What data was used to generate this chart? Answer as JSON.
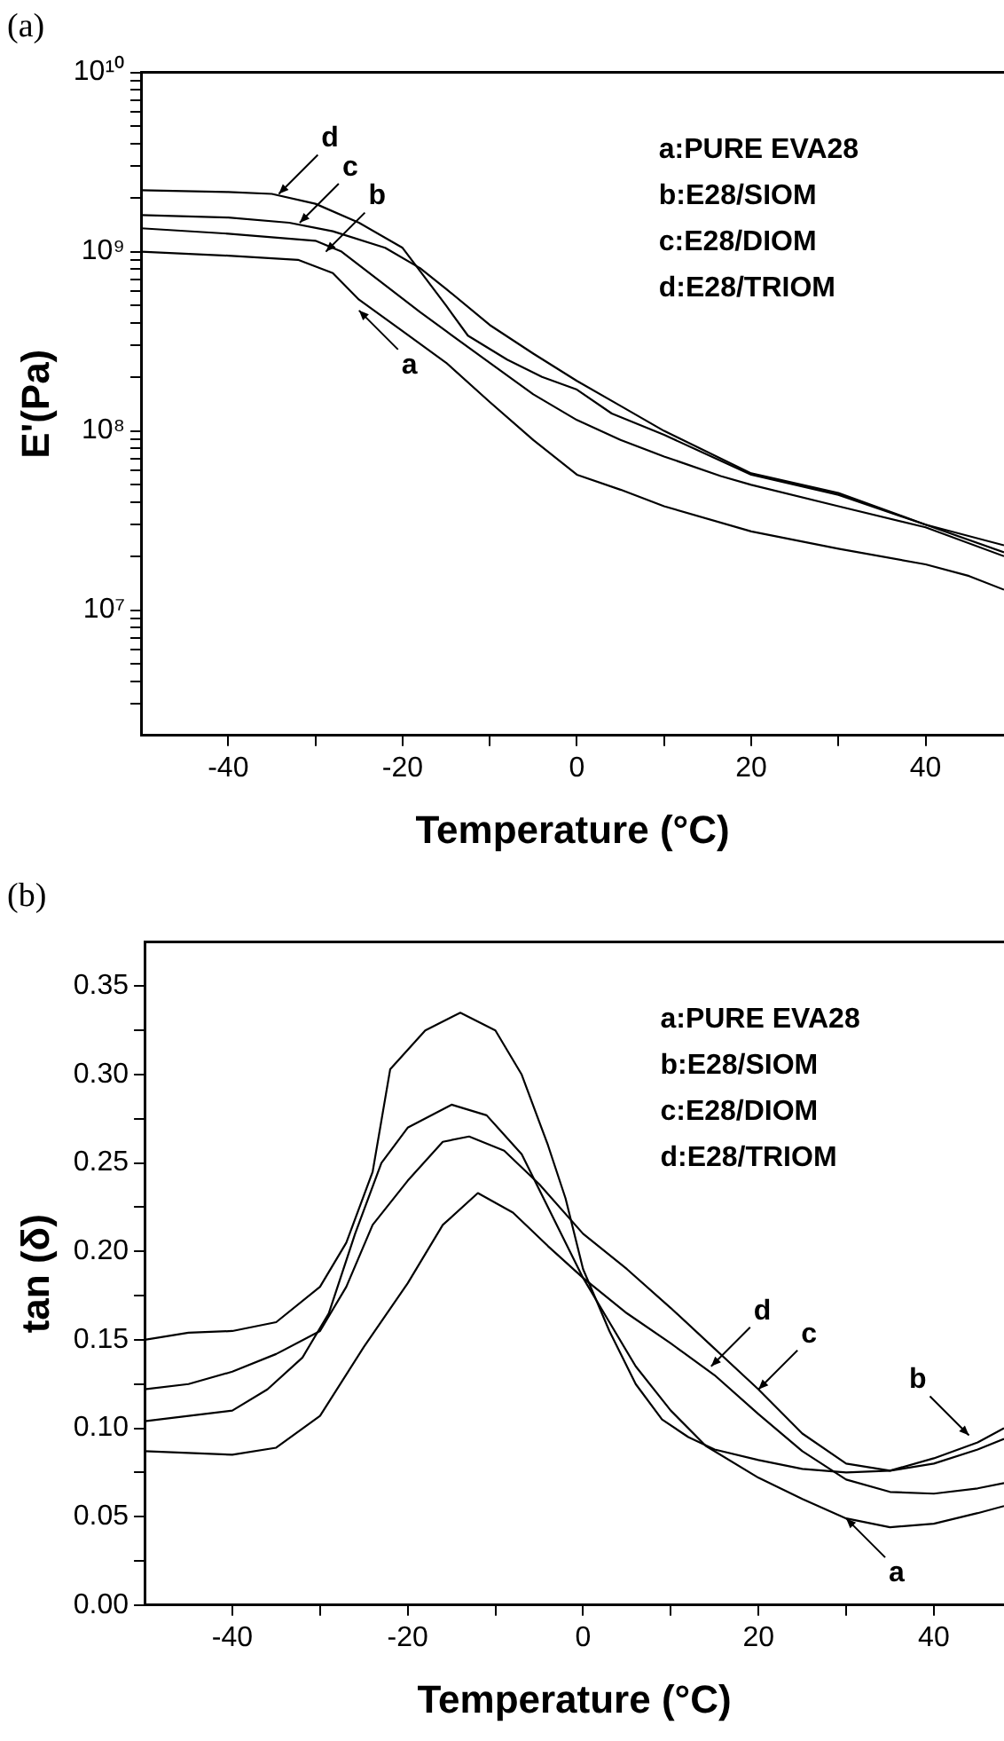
{
  "chart_data": [
    {
      "type": "line",
      "title": "(a)",
      "xlabel": "Temperature (°C)",
      "ylabel": "E'(Pa)",
      "log": true,
      "xlim": [
        -50,
        49
      ],
      "xticks": [
        -40,
        {
          "value": -30,
          "label": null
        },
        -20,
        {
          "value": -10,
          "label": null
        },
        0,
        {
          "value": 10,
          "label": null
        },
        20,
        {
          "value": 30,
          "label": null
        },
        40
      ],
      "ylim": [
        2000000,
        10000000000
      ],
      "yticks": [
        {
          "value": 3000000,
          "label": null
        },
        {
          "value": 4000000,
          "label": null
        },
        {
          "value": 5000000,
          "label": null
        },
        {
          "value": 6000000,
          "label": null
        },
        {
          "value": 7000000,
          "label": null
        },
        {
          "value": 8000000,
          "label": null
        },
        {
          "value": 9000000,
          "label": null
        },
        {
          "value": 10000000,
          "label": "10⁷"
        },
        {
          "value": 20000000,
          "label": null
        },
        {
          "value": 30000000,
          "label": null
        },
        {
          "value": 40000000,
          "label": null
        },
        {
          "value": 50000000,
          "label": null
        },
        {
          "value": 60000000,
          "label": null
        },
        {
          "value": 70000000,
          "label": null
        },
        {
          "value": 80000000,
          "label": null
        },
        {
          "value": 90000000,
          "label": null
        },
        {
          "value": 100000000,
          "label": "10⁸"
        },
        {
          "value": 200000000,
          "label": null
        },
        {
          "value": 300000000,
          "label": null
        },
        {
          "value": 400000000,
          "label": null
        },
        {
          "value": 500000000,
          "label": null
        },
        {
          "value": 600000000,
          "label": null
        },
        {
          "value": 700000000,
          "label": null
        },
        {
          "value": 800000000,
          "label": null
        },
        {
          "value": 900000000,
          "label": null
        },
        {
          "value": 1000000000,
          "label": "10⁹"
        },
        {
          "value": 2000000000,
          "label": null
        },
        {
          "value": 3000000000,
          "label": null
        },
        {
          "value": 4000000000,
          "label": null
        },
        {
          "value": 5000000000,
          "label": null
        },
        {
          "value": 6000000000,
          "label": null
        },
        {
          "value": 7000000000,
          "label": null
        },
        {
          "value": 8000000000,
          "label": null
        },
        {
          "value": 9000000000,
          "label": null
        },
        {
          "value": 10000000000,
          "label": "10¹⁰"
        }
      ],
      "annotations": [
        "a:PURE EVA28",
        "b:E28/SIOM",
        "c:E28/DIOM",
        "d:E28/TRIOM",
        {
          "text": "a",
          "x": -25,
          "y": 470000000
        },
        {
          "text": "b",
          "x": -28.8,
          "y": 1000000000
        },
        {
          "text": "c",
          "x": -31.8,
          "y": 1450000000
        },
        {
          "text": "d",
          "x": -34.2,
          "y": 2100000000
        }
      ],
      "series": [
        {
          "color": "#000000",
          "x": [
            -50,
            -40,
            -32,
            -28,
            -25,
            -20,
            -15,
            -10,
            -5,
            0,
            5,
            10,
            20,
            30,
            40,
            45,
            49
          ],
          "values": [
            1000000000,
            950000000,
            900000000,
            760000000,
            540000000,
            360000000,
            240000000,
            145000000,
            89000000,
            57000000,
            47000000,
            38000000,
            27500000,
            22000000,
            18000000,
            15500000,
            13000000
          ]
        },
        {
          "color": "#000000",
          "x": [
            -50,
            -40,
            -30,
            -27,
            -22,
            -18,
            -15,
            -10,
            -5,
            0,
            5,
            10,
            16.5,
            20,
            30,
            40,
            49
          ],
          "values": [
            1350000000,
            1260000000,
            1150000000,
            1000000000,
            650000000,
            460000000,
            360000000,
            240000000,
            160000000,
            115000000,
            89000000,
            72000000,
            56000000,
            50000000,
            38000000,
            29000000,
            20000000
          ]
        },
        {
          "color": "#000000",
          "x": [
            -50,
            -40,
            -33,
            -28,
            -22,
            -18,
            -15,
            -10,
            -5,
            0,
            5,
            10,
            20,
            30,
            40,
            49
          ],
          "values": [
            1600000000,
            1550000000,
            1450000000,
            1300000000,
            1050000000,
            810000000,
            620000000,
            390000000,
            270000000,
            190000000,
            138000000,
            100000000,
            58000000,
            45000000,
            30000000,
            21000000
          ]
        },
        {
          "color": "#000000",
          "x": [
            -50,
            -40,
            -35,
            -30,
            -25,
            -20,
            -15,
            -12.5,
            -8,
            -4,
            0,
            4,
            10,
            20,
            30,
            40,
            49
          ],
          "values": [
            2200000000,
            2150000000,
            2100000000,
            1850000000,
            1450000000,
            1050000000,
            500000000,
            340000000,
            250000000,
            200000000,
            170000000,
            125000000,
            95000000,
            57000000,
            44000000,
            30000000,
            23000000
          ]
        }
      ]
    },
    {
      "type": "line",
      "title": "(b)",
      "xlabel": "Temperature (°C)",
      "ylabel": "tan (δ)",
      "xlim": [
        -50,
        48
      ],
      "xticks": [
        -40,
        {
          "value": -30,
          "label": null
        },
        -20,
        {
          "value": -10,
          "label": null
        },
        0,
        {
          "value": 10,
          "label": null
        },
        20,
        {
          "value": 30,
          "label": null
        },
        40
      ],
      "ylim": [
        0,
        0.375
      ],
      "yticks": [
        {
          "value": 0,
          "label": "0.00"
        },
        {
          "value": 0.025,
          "label": null
        },
        {
          "value": 0.05,
          "label": "0.05"
        },
        {
          "value": 0.075,
          "label": null
        },
        {
          "value": 0.1,
          "label": "0.10"
        },
        {
          "value": 0.125,
          "label": null
        },
        {
          "value": 0.15,
          "label": "0.15"
        },
        {
          "value": 0.175,
          "label": null
        },
        {
          "value": 0.2,
          "label": "0.20"
        },
        {
          "value": 0.225,
          "label": null
        },
        {
          "value": 0.25,
          "label": "0.25"
        },
        {
          "value": 0.275,
          "label": null
        },
        {
          "value": 0.3,
          "label": "0.30"
        },
        {
          "value": 0.325,
          "label": null
        },
        {
          "value": 0.35,
          "label": "0.35"
        }
      ],
      "annotations": [
        "a:PURE EVA28",
        "b:E28/SIOM",
        "c:E28/DIOM",
        "d:E28/TRIOM",
        {
          "text": "a",
          "x": 30,
          "y": 0.049
        },
        {
          "text": "b",
          "x": 44,
          "y": 0.096
        },
        {
          "text": "c",
          "x": 20,
          "y": 0.122
        },
        {
          "text": "d",
          "x": 14.6,
          "y": 0.135
        }
      ],
      "series": [
        {
          "color": "#000000",
          "x": [
            -50,
            -45,
            -40,
            -35,
            -30,
            -25,
            -20,
            -16,
            -12,
            -8,
            -4,
            0,
            5,
            10,
            15,
            20,
            25,
            30,
            35,
            40,
            45,
            48
          ],
          "values": [
            0.087,
            0.086,
            0.085,
            0.089,
            0.107,
            0.146,
            0.182,
            0.215,
            0.233,
            0.222,
            0.203,
            0.185,
            0.165,
            0.148,
            0.13,
            0.108,
            0.087,
            0.071,
            0.064,
            0.063,
            0.066,
            0.069
          ]
        },
        {
          "color": "#000000",
          "x": [
            -50,
            -45,
            -40,
            -35,
            -30,
            -27,
            -24,
            -22,
            -18,
            -14,
            -10,
            -7,
            -4,
            -2,
            0,
            3,
            6,
            9,
            12,
            15,
            20,
            25,
            30,
            35,
            40,
            45,
            48
          ],
          "values": [
            0.15,
            0.154,
            0.155,
            0.16,
            0.18,
            0.205,
            0.245,
            0.303,
            0.325,
            0.335,
            0.325,
            0.3,
            0.26,
            0.23,
            0.19,
            0.155,
            0.125,
            0.105,
            0.095,
            0.088,
            0.082,
            0.077,
            0.075,
            0.076,
            0.083,
            0.092,
            0.1
          ]
        },
        {
          "color": "#000000",
          "x": [
            -50,
            -45,
            -40,
            -36,
            -32,
            -29,
            -26,
            -23,
            -20,
            -15,
            -11,
            -7,
            -3,
            0,
            3,
            6,
            10,
            14,
            20,
            25,
            30,
            35,
            40,
            45,
            48
          ],
          "values": [
            0.104,
            0.107,
            0.11,
            0.122,
            0.14,
            0.165,
            0.21,
            0.25,
            0.27,
            0.283,
            0.277,
            0.255,
            0.215,
            0.185,
            0.16,
            0.135,
            0.11,
            0.09,
            0.072,
            0.06,
            0.049,
            0.044,
            0.046,
            0.052,
            0.056
          ]
        },
        {
          "color": "#000000",
          "x": [
            -50,
            -45,
            -40,
            -35,
            -30,
            -27,
            -24,
            -20,
            -16,
            -13,
            -9,
            -5,
            0,
            5,
            10,
            15,
            20,
            25,
            30,
            35,
            40,
            45,
            48
          ],
          "values": [
            0.122,
            0.125,
            0.132,
            0.142,
            0.155,
            0.18,
            0.215,
            0.24,
            0.262,
            0.265,
            0.257,
            0.238,
            0.21,
            0.19,
            0.168,
            0.145,
            0.122,
            0.097,
            0.08,
            0.076,
            0.08,
            0.088,
            0.094
          ]
        }
      ]
    }
  ]
}
